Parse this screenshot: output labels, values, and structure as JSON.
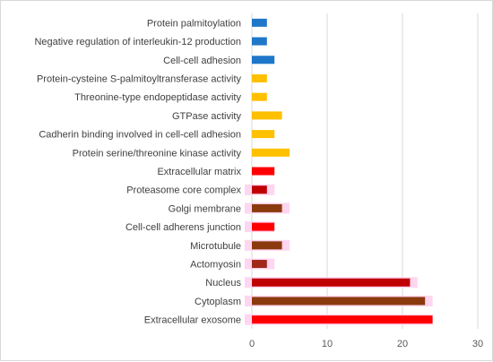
{
  "chart_data": {
    "type": "bar",
    "orientation": "horizontal",
    "title": "",
    "xlabel": "",
    "ylabel": "",
    "xlim": [
      0,
      30
    ],
    "x_ticks": [
      0,
      10,
      20,
      30
    ],
    "grid": "vertical",
    "legend": "none",
    "categories": [
      "Protein palmitoylation",
      "Negative regulation of interleukin-12 production",
      "Cell-cell adhesion",
      "Protein-cysteine S-palmitoyltransferase activity",
      "Threonine-type endopeptidase activity",
      "GTPase activity",
      "Cadherin binding involved in cell-cell adhesion",
      "Protein serine/threonine kinase activity",
      "Extracellular matrix",
      "Proteasome core complex",
      "Golgi membrane",
      "Cell-cell adherens junction",
      "Microtubule",
      "Actomyosin",
      "Nucleus",
      "Cytoplasm",
      "Extracellular exosome"
    ],
    "values": [
      2,
      2,
      3,
      2,
      2,
      4,
      3,
      5,
      3,
      2,
      4,
      3,
      4,
      2,
      21,
      23,
      24
    ],
    "bar_colors": [
      "#1f77c9",
      "#1f77c9",
      "#1f77c9",
      "#ffc000",
      "#ffc000",
      "#ffc000",
      "#ffc000",
      "#ffc000",
      "#ff0000",
      "#c00000",
      "#8b3a0e",
      "#ff0000",
      "#8b3a0e",
      "#a0291b",
      "#c00000",
      "#8b3a0e",
      "#ff0000"
    ],
    "overlay_values": [
      null,
      null,
      null,
      null,
      null,
      null,
      null,
      null,
      null,
      3,
      5,
      3,
      5,
      3,
      22,
      24,
      24
    ],
    "overlay_color": "#ffd6f0",
    "overlay_tail_color": "#ffd6f0"
  }
}
